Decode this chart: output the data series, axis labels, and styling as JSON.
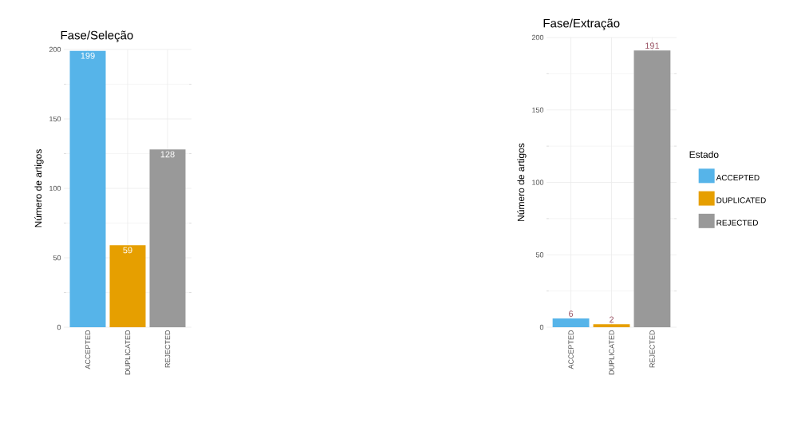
{
  "chart_data": [
    {
      "type": "bar",
      "title": "Fase/Seleção",
      "ylabel": "Número de artigos",
      "categories": [
        "ACCEPTED",
        "DUPLICATED",
        "REJECTED"
      ],
      "values": [
        199,
        59,
        128
      ],
      "colors": [
        "#56b4e9",
        "#e69f00",
        "#999999"
      ],
      "ylim": [
        0,
        200
      ],
      "yticks": [
        0,
        50,
        100,
        150,
        200
      ],
      "grid": true,
      "data_labels": true
    },
    {
      "type": "bar",
      "title": "Fase/Extração",
      "ylabel": "Número de artigos",
      "categories": [
        "ACCEPTED",
        "DUPLICATED",
        "REJECTED"
      ],
      "series": [
        {
          "name": "ACCEPTED",
          "color": "#56b4e9",
          "values": [
            6,
            null,
            null
          ]
        },
        {
          "name": "DUPLICATED",
          "color": "#e69f00",
          "values": [
            null,
            2,
            null
          ]
        },
        {
          "name": "REJECTED",
          "color": "#999999",
          "values": [
            null,
            null,
            191
          ]
        }
      ],
      "ylim": [
        0,
        200
      ],
      "yticks": [
        0,
        50,
        100,
        150,
        200
      ],
      "grid": true,
      "data_labels": true,
      "legend": "right",
      "legend_title": "Estado"
    }
  ]
}
